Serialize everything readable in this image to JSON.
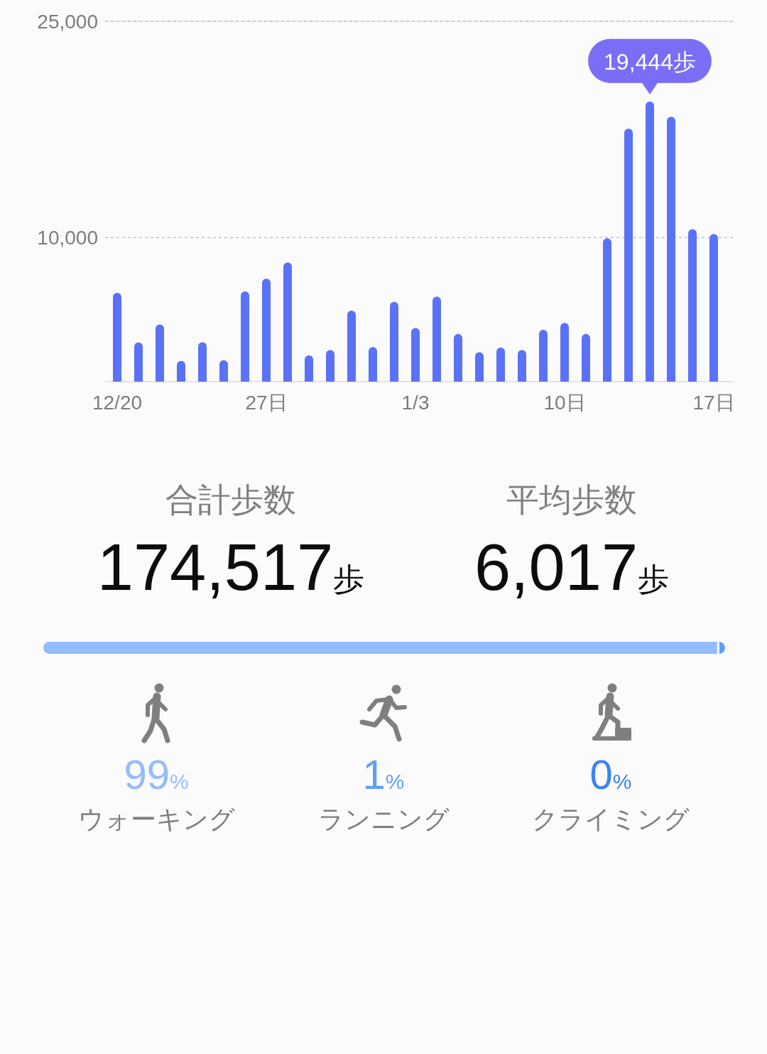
{
  "chart_data": [
    {
      "type": "bar",
      "categories": [
        "12/20",
        null,
        null,
        null,
        null,
        null,
        null,
        "27日",
        null,
        null,
        null,
        null,
        null,
        null,
        "1/3",
        null,
        null,
        null,
        null,
        null,
        null,
        "10日",
        null,
        null,
        null,
        null,
        null,
        null,
        "17日"
      ],
      "values": [
        6160,
        2720,
        3970,
        1440,
        2740,
        1490,
        6260,
        7150,
        8270,
        1830,
        2200,
        4930,
        2400,
        5540,
        3720,
        5900,
        3310,
        2050,
        2370,
        2200,
        3600,
        4080,
        3310,
        9950,
        17550,
        19444,
        18380,
        10580,
        10250
      ],
      "color": "#5a72f7",
      "value_labels": [
        null,
        null,
        null,
        null,
        null,
        null,
        null,
        null,
        null,
        null,
        null,
        null,
        null,
        null,
        null,
        null,
        null,
        null,
        null,
        null,
        null,
        null,
        null,
        null,
        null,
        "19,444歩",
        null,
        null,
        null
      ],
      "ylim": [
        0,
        25000
      ],
      "yticks": [
        {
          "value": 10000,
          "label": "10,000"
        },
        {
          "value": 25000,
          "label": "25,000"
        }
      ],
      "grid": "y"
    },
    {
      "type": "other",
      "title": "合計歩数",
      "annotations": [
        "174,517歩"
      ]
    },
    {
      "type": "other",
      "title": "平均歩数",
      "annotations": [
        "6,017歩"
      ]
    },
    {
      "type": "other",
      "categories": [
        "ウォーキング",
        "ランニング",
        "クライミング"
      ],
      "values": [
        99,
        1,
        0
      ],
      "colors": [
        "#93bcfc",
        "#5f9ef9",
        "#3b82f6"
      ],
      "value_labels": [
        "99%",
        "1%",
        "0%"
      ]
    }
  ]
}
